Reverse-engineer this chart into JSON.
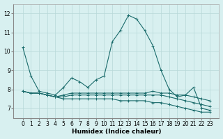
{
  "xlabel": "Humidex (Indice chaleur)",
  "x": [
    0,
    1,
    2,
    3,
    4,
    5,
    6,
    7,
    8,
    9,
    10,
    11,
    12,
    13,
    14,
    15,
    16,
    17,
    18,
    19,
    20,
    21,
    22,
    23
  ],
  "line1": [
    10.2,
    8.7,
    7.9,
    7.8,
    7.7,
    8.1,
    8.6,
    8.4,
    8.1,
    8.5,
    8.7,
    10.5,
    11.1,
    11.9,
    11.7,
    11.1,
    10.3,
    9.0,
    8.0,
    7.6,
    7.7,
    8.1,
    7.0,
    6.9
  ],
  "line2": [
    7.9,
    7.8,
    7.8,
    7.7,
    7.6,
    7.7,
    7.8,
    7.8,
    7.8,
    7.8,
    7.8,
    7.8,
    7.8,
    7.8,
    7.8,
    7.8,
    7.9,
    7.8,
    7.8,
    7.7,
    7.7,
    7.6,
    7.5,
    7.4
  ],
  "line3": [
    7.9,
    7.8,
    7.8,
    7.7,
    7.6,
    7.6,
    7.7,
    7.7,
    7.7,
    7.7,
    7.7,
    7.7,
    7.7,
    7.7,
    7.7,
    7.7,
    7.7,
    7.7,
    7.6,
    7.5,
    7.4,
    7.3,
    7.2,
    7.1
  ],
  "line4": [
    7.9,
    7.8,
    7.8,
    7.7,
    7.6,
    7.5,
    7.5,
    7.5,
    7.5,
    7.5,
    7.5,
    7.5,
    7.4,
    7.4,
    7.4,
    7.4,
    7.3,
    7.3,
    7.2,
    7.1,
    7.0,
    6.9,
    6.8,
    6.8
  ],
  "line_color": "#1a6b6b",
  "bg_color": "#d8f0f0",
  "grid_color": "#b8d8d8",
  "ylim": [
    6.5,
    12.5
  ],
  "yticks": [
    7,
    8,
    9,
    10,
    11,
    12
  ],
  "xticks": [
    0,
    1,
    2,
    3,
    4,
    5,
    6,
    7,
    8,
    9,
    10,
    11,
    12,
    13,
    14,
    15,
    16,
    17,
    18,
    19,
    20,
    21,
    22,
    23
  ],
  "marker": "+",
  "markersize": 3,
  "linewidth": 0.8,
  "label_fontsize": 6.5,
  "tick_fontsize": 5.5,
  "xlabel_fontsize": 6.5
}
